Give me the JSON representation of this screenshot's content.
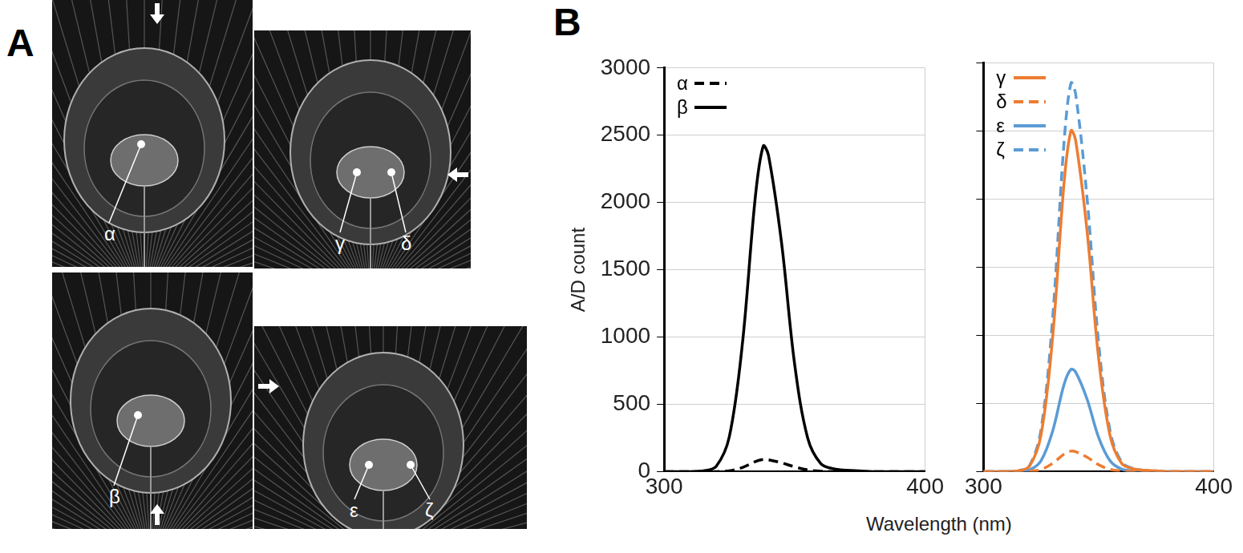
{
  "figure": {
    "panels": [
      "A",
      "B"
    ],
    "photos": [
      {
        "labels": [
          "α"
        ]
      },
      {
        "labels": [
          "γ",
          "δ"
        ]
      },
      {
        "labels": [
          "β"
        ]
      },
      {
        "labels": [
          "ε",
          "ζ"
        ]
      }
    ],
    "xlabel": "Wavelength (nm)"
  },
  "chart_data": [
    {
      "type": "line",
      "ylabel": "A/D count",
      "x": [
        300,
        305,
        310,
        315,
        320,
        325,
        330,
        335,
        338,
        340,
        345,
        350,
        355,
        360,
        365,
        370,
        375,
        380,
        385,
        390,
        395,
        400
      ],
      "xlim": [
        300,
        400
      ],
      "xticks": [
        300,
        400
      ],
      "ylim": [
        0,
        3000
      ],
      "yticks": [
        0,
        500,
        1000,
        1500,
        2000,
        2500,
        3000
      ],
      "grid": true,
      "legend": "upper left",
      "series": [
        {
          "name": "α",
          "color": "#000000",
          "line_style": "dashed",
          "values": [
            0,
            0,
            0,
            0,
            0,
            5,
            30,
            75,
            90,
            88,
            65,
            35,
            12,
            3,
            0,
            0,
            0,
            0,
            0,
            0,
            0,
            0
          ]
        },
        {
          "name": "β",
          "color": "#000000",
          "line_style": "solid",
          "values": [
            0,
            0,
            0,
            5,
            40,
            260,
            950,
            2050,
            2420,
            2350,
            1700,
            800,
            250,
            60,
            20,
            10,
            5,
            0,
            0,
            0,
            0,
            0
          ]
        }
      ]
    },
    {
      "type": "line",
      "x": [
        300,
        305,
        310,
        315,
        320,
        325,
        330,
        335,
        338,
        340,
        345,
        350,
        355,
        360,
        365,
        370,
        375,
        380,
        385,
        390,
        395,
        400
      ],
      "xlim": [
        300,
        400
      ],
      "xticks": [
        300,
        400
      ],
      "ylim": [
        0,
        3000
      ],
      "yticks": [
        0,
        500,
        1000,
        1500,
        2000,
        2500,
        3000
      ],
      "grid": true,
      "legend": "upper left",
      "tick_labels": "x",
      "series": [
        {
          "name": "γ",
          "color": "#ed7d31",
          "line_style": "solid",
          "values": [
            0,
            0,
            0,
            5,
            40,
            270,
            980,
            2120,
            2500,
            2430,
            1760,
            830,
            260,
            60,
            20,
            10,
            5,
            0,
            0,
            0,
            0,
            0
          ]
        },
        {
          "name": "δ",
          "color": "#ed7d31",
          "line_style": "dashed",
          "values": [
            0,
            0,
            0,
            0,
            2,
            15,
            60,
            128,
            150,
            146,
            105,
            50,
            16,
            4,
            0,
            0,
            0,
            0,
            0,
            0,
            0,
            0
          ]
        },
        {
          "name": "ε",
          "color": "#5b9bd5",
          "line_style": "solid",
          "values": [
            0,
            0,
            0,
            2,
            12,
            80,
            295,
            640,
            750,
            730,
            530,
            250,
            78,
            18,
            6,
            3,
            0,
            0,
            0,
            0,
            0,
            0
          ]
        },
        {
          "name": "ζ",
          "color": "#5b9bd5",
          "line_style": "dashed",
          "values": [
            0,
            0,
            0,
            6,
            45,
            310,
            1120,
            2420,
            2850,
            2770,
            2000,
            940,
            295,
            70,
            22,
            10,
            5,
            0,
            0,
            0,
            0,
            0
          ]
        }
      ]
    }
  ]
}
